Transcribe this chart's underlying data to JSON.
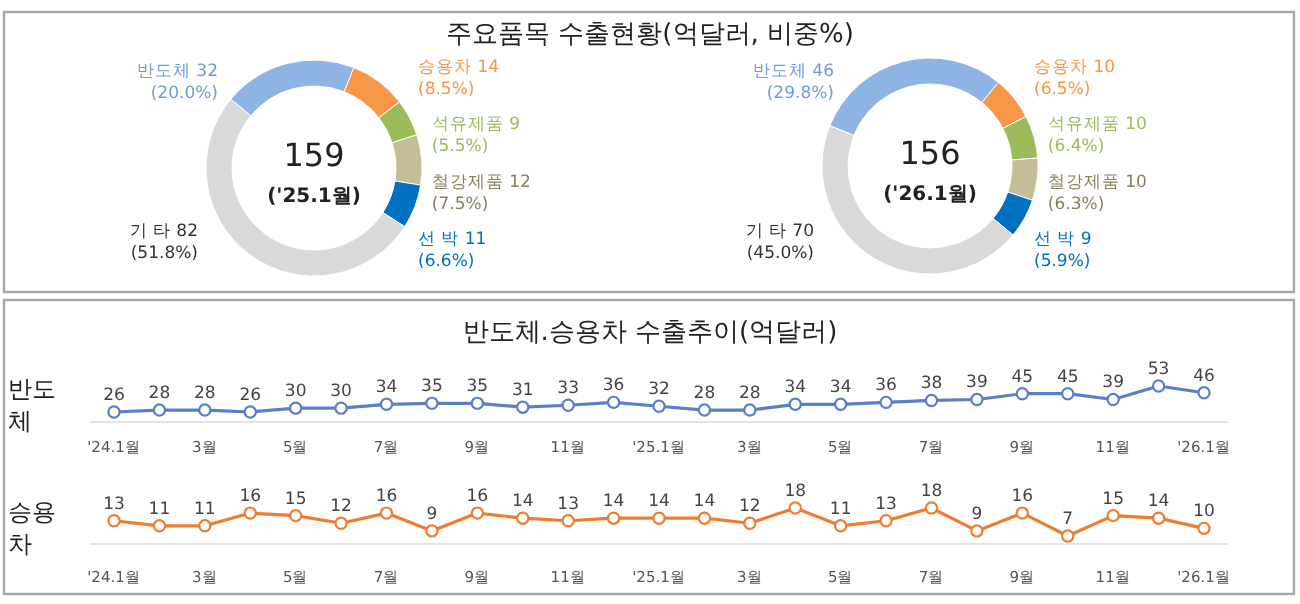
{
  "chart_data": [
    {
      "type": "donut",
      "title": "주요품목 수출현황(억달러, 비중%)",
      "categories": [
        "반도체 32",
        "승용차 14",
        "석유제품 9",
        "철강제품 12",
        "선 박 11",
        "기 타 82"
      ],
      "values": [
        20.0,
        8.5,
        5.5,
        7.5,
        6.6,
        51.8
      ],
      "value_labels": [
        "(20.0%)",
        "(8.5%)",
        "(5.5%)",
        "(7.5%)",
        "(6.6%)",
        "(51.8%)"
      ],
      "colors": [
        "#8db4e2",
        "#f79646",
        "#9bbb59",
        "#c4bd97",
        "#0070c0",
        "#d9d9d9"
      ],
      "annotations": [
        "159",
        "('25.1월)"
      ]
    },
    {
      "type": "donut",
      "categories": [
        "반도체 46",
        "승용차 10",
        "석유제품 10",
        "철강제품 10",
        "선 박 9",
        "기 타 70"
      ],
      "values": [
        29.8,
        6.5,
        6.4,
        6.3,
        5.9,
        45.0
      ],
      "value_labels": [
        "(29.8%)",
        "(6.5%)",
        "(6.4%)",
        "(6.3%)",
        "(5.9%)",
        "(45.0%)"
      ],
      "colors": [
        "#8db4e2",
        "#f79646",
        "#9bbb59",
        "#c4bd97",
        "#0070c0",
        "#d9d9d9"
      ],
      "annotations": [
        "156",
        "('26.1월)"
      ]
    },
    {
      "type": "line",
      "title": "반도체.승용차 수출추이(억달러)",
      "ylabel": "반도체",
      "categories": [
        "'24.1월",
        null,
        "3월",
        null,
        "5월",
        null,
        "7월",
        null,
        "9월",
        null,
        "11월",
        null,
        "'25.1월",
        null,
        "3월",
        null,
        "5월",
        null,
        "7월",
        null,
        "9월",
        null,
        "11월",
        null,
        "'26.1월"
      ],
      "series": [
        {
          "color": "#5b7fc7",
          "values": [
            26,
            28,
            28,
            26,
            30,
            30,
            34,
            35,
            35,
            31,
            33,
            36,
            32,
            28,
            28,
            34,
            34,
            36,
            38,
            39,
            45,
            45,
            39,
            53,
            46
          ]
        }
      ],
      "data_labels": true,
      "marker": "circle"
    },
    {
      "type": "line",
      "ylabel": "승용차",
      "categories": [
        "'24.1월",
        null,
        "3월",
        null,
        "5월",
        null,
        "7월",
        null,
        "9월",
        null,
        "11월",
        null,
        "'25.1월",
        null,
        "3월",
        null,
        "5월",
        null,
        "7월",
        null,
        "9월",
        null,
        "11월",
        null,
        "'26.1월"
      ],
      "series": [
        {
          "color": "#ed7d31",
          "values": [
            13,
            11,
            11,
            16,
            15,
            12,
            16,
            9,
            16,
            14,
            13,
            14,
            14,
            14,
            12,
            18,
            11,
            13,
            18,
            9,
            16,
            7,
            15,
            14,
            10
          ]
        }
      ],
      "data_labels": true,
      "marker": "circle"
    }
  ]
}
